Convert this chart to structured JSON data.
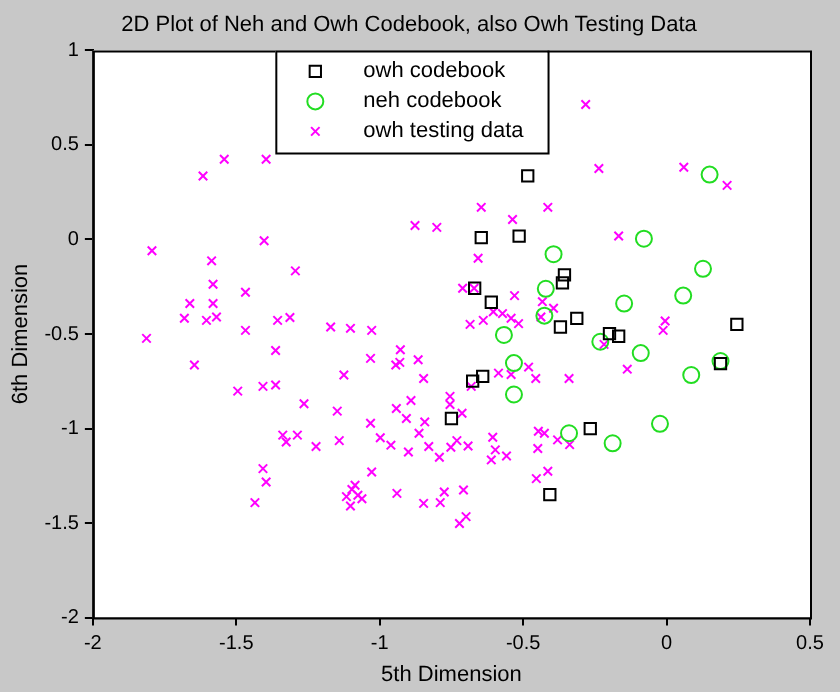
{
  "chart_data": {
    "type": "scatter",
    "title": "2D Plot of Neh and Owh Codebook, also Owh Testing Data",
    "xlabel": "5th Dimension",
    "ylabel": "6th Dimension",
    "xlim": [
      -2,
      0.5
    ],
    "xticks": [
      -2,
      -1.5,
      -1,
      -0.5,
      0,
      0.5
    ],
    "ylim": [
      -2,
      1
    ],
    "yticks": [
      -2,
      -1.5,
      -1,
      -0.5,
      0,
      0.5,
      1
    ],
    "grid": false,
    "legend": "top",
    "series": [
      {
        "name": "owh codebook",
        "color": "#000000",
        "marker": "square",
        "x": [
          -0.484,
          -0.646,
          -0.514,
          -0.356,
          -0.363,
          -0.669,
          -0.611,
          -0.313,
          -0.37,
          -0.199,
          -0.167,
          0.245,
          0.188,
          -0.641,
          -0.676,
          -0.75,
          -0.266,
          -0.407
        ],
        "values": [
          0.336,
          0.01,
          0.018,
          -0.187,
          -0.23,
          -0.258,
          -0.332,
          -0.417,
          -0.463,
          -0.498,
          -0.512,
          -0.449,
          -0.657,
          -0.724,
          -0.749,
          -0.947,
          -1.0,
          -1.35
        ]
      },
      {
        "name": "neh codebook",
        "color": "#22dd22",
        "marker": "circle",
        "x": [
          0.15,
          -0.079,
          -0.394,
          0.127,
          -0.421,
          0.058,
          -0.148,
          -0.426,
          -0.567,
          -0.231,
          -0.09,
          -0.532,
          0.188,
          0.086,
          -0.532,
          -0.023,
          -0.34,
          -0.188
        ],
        "values": [
          0.343,
          0.004,
          -0.078,
          -0.155,
          -0.261,
          -0.297,
          -0.339,
          -0.403,
          -0.505,
          -0.541,
          -0.601,
          -0.654,
          -0.643,
          -0.717,
          -0.82,
          -0.975,
          -1.025,
          -1.078
        ]
      },
      {
        "name": "owh testing data",
        "color": "#ff00ff",
        "marker": "cross",
        "x": [
          -1.542,
          -1.396,
          -1.616,
          -1.403,
          -1.794,
          -1.586,
          -1.294,
          -1.581,
          -1.468,
          -1.662,
          -1.581,
          -1.681,
          -1.604,
          -1.569,
          -1.356,
          -1.313,
          -1.813,
          -1.468,
          -1.171,
          -1.102,
          -1.028,
          -1.363,
          -1.646,
          -1.032,
          -1.125,
          -1.407,
          -1.363,
          -1.495,
          -1.264,
          -1.148,
          -1.338,
          -1.287,
          -1.326,
          -1.222,
          -1.141,
          -1.032,
          -0.998,
          -0.961,
          -1.407,
          -1.396,
          -1.435,
          -1.116,
          -1.102,
          -1.086,
          -1.076,
          -1.062,
          -1.097,
          -1.028,
          -0.94,
          -0.944,
          -0.942,
          -0.282,
          -0.236,
          0.06,
          0.211,
          -0.646,
          -0.414,
          -0.877,
          -0.801,
          -0.537,
          -0.167,
          -0.657,
          -0.711,
          -0.671,
          -0.53,
          -0.433,
          -0.394,
          -0.604,
          -0.572,
          -0.639,
          -0.685,
          -0.542,
          -0.516,
          -0.438,
          -0.005,
          -0.012,
          -0.218,
          -0.137,
          -0.866,
          -0.928,
          -0.93,
          -0.847,
          -0.586,
          -0.542,
          -0.481,
          -0.456,
          -0.34,
          -0.681,
          -0.755,
          -0.755,
          -0.713,
          -0.891,
          -0.843,
          -0.907,
          -0.863,
          -0.829,
          -0.9,
          -0.792,
          -0.752,
          -0.731,
          -0.692,
          -0.606,
          -0.597,
          -0.611,
          -0.558,
          -0.447,
          -0.426,
          -0.449,
          -0.38,
          -0.338,
          -0.454,
          -0.414,
          -0.847,
          -0.789,
          -0.775,
          -0.708,
          -0.722,
          -0.699
        ],
        "values": [
          0.424,
          0.424,
          0.336,
          -0.007,
          -0.06,
          -0.113,
          -0.166,
          -0.237,
          -0.279,
          -0.339,
          -0.339,
          -0.417,
          -0.428,
          -0.41,
          -0.428,
          -0.413,
          -0.523,
          -0.481,
          -0.463,
          -0.47,
          -0.481,
          -0.587,
          -0.664,
          -0.629,
          -0.717,
          -0.777,
          -0.77,
          -0.802,
          -0.869,
          -0.908,
          -1.035,
          -1.035,
          -1.071,
          -1.095,
          -1.064,
          -0.972,
          -1.049,
          -1.088,
          -1.212,
          -1.283,
          -1.392,
          -1.36,
          -1.41,
          -1.3,
          -1.353,
          -1.371,
          -1.322,
          -1.23,
          -1.343,
          -0.664,
          -0.894,
          0.714,
          0.375,
          0.382,
          0.286,
          0.17,
          0.17,
          0.074,
          0.064,
          0.106,
          0.018,
          -0.099,
          -0.258,
          -0.258,
          -0.297,
          -0.329,
          -0.364,
          -0.382,
          -0.392,
          -0.428,
          -0.449,
          -0.417,
          -0.445,
          -0.41,
          -0.431,
          -0.481,
          -0.555,
          -0.686,
          -0.636,
          -0.583,
          -0.65,
          -0.735,
          -0.707,
          -0.714,
          -0.675,
          -0.735,
          -0.735,
          -0.777,
          -0.83,
          -0.873,
          -0.919,
          -0.852,
          -0.965,
          -0.947,
          -1.025,
          -1.095,
          -1.124,
          -1.152,
          -1.099,
          -1.064,
          -1.092,
          -1.046,
          -1.113,
          -1.166,
          -1.145,
          -1.014,
          -1.025,
          -1.106,
          -1.06,
          -1.085,
          -1.265,
          -1.226,
          -1.396,
          -1.392,
          -1.336,
          -1.325,
          -1.502,
          -1.466
        ]
      }
    ]
  }
}
